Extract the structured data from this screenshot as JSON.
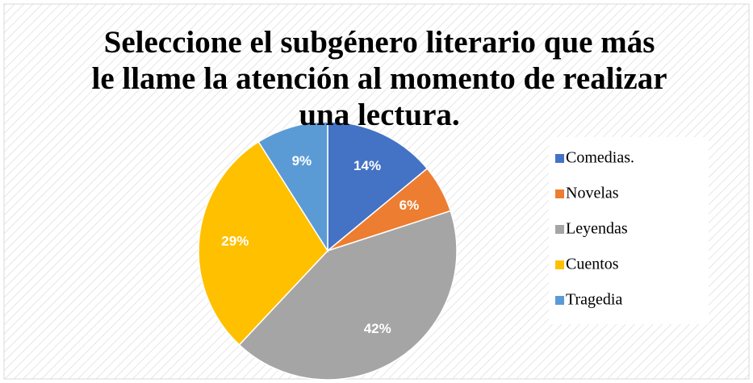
{
  "chart_data": {
    "type": "pie",
    "title": "Seleccione el subgénero literario que más le llame la atención al momento de realizar una lectura.",
    "categories": [
      "Comedias.",
      "Novelas",
      "Leyendas",
      "Cuentos",
      "Tragedia"
    ],
    "values": [
      14,
      6,
      42,
      29,
      9
    ],
    "value_labels": [
      "14%",
      "6%",
      "42%",
      "29%",
      "9%"
    ],
    "colors": [
      "#4472c4",
      "#ed7d31",
      "#a5a5a5",
      "#ffc000",
      "#5b9bd5"
    ],
    "legend": "right"
  }
}
